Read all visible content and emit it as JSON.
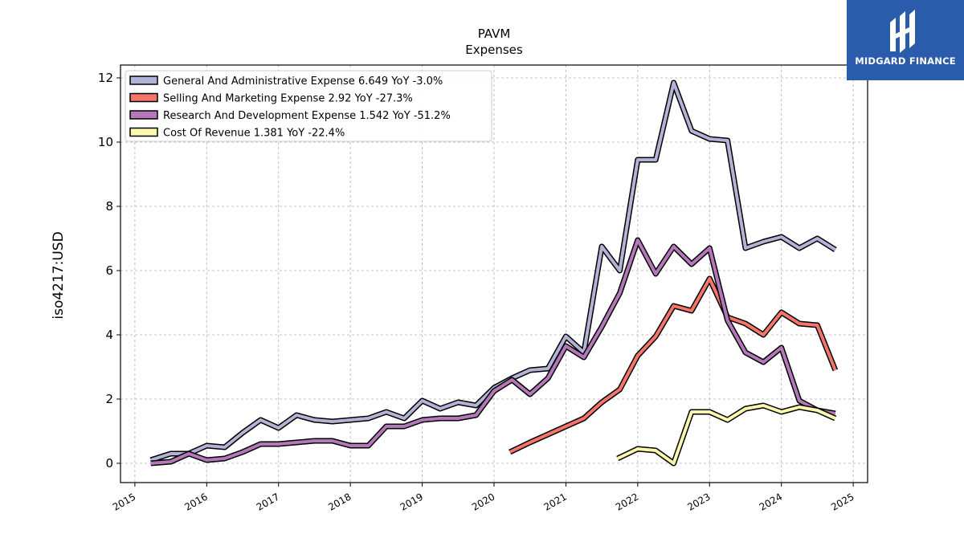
{
  "brand": {
    "name": "MIDGARD FINANCE",
    "color": "#2b5bab"
  },
  "chart_data": {
    "type": "line",
    "title": "PAVM",
    "subtitle": "Expenses",
    "xlabel": "",
    "ylabel": "iso4217:USD",
    "xlim": [
      2014.8,
      2025.2
    ],
    "ylim": [
      -0.6,
      12.4
    ],
    "x_ticks": [
      "2015",
      "2016",
      "2017",
      "2018",
      "2019",
      "2020",
      "2021",
      "2022",
      "2023",
      "2024",
      "2025"
    ],
    "y_ticks": [
      "0",
      "2",
      "4",
      "6",
      "8",
      "10",
      "12"
    ],
    "grid": true,
    "legend_position": "top-left",
    "series": [
      {
        "name": "General And Administrative Expense  6.649 YoY -3.0%",
        "color": "#b3b3d8",
        "x": [
          2015.22,
          2015.5,
          2015.75,
          2016.0,
          2016.25,
          2016.5,
          2016.75,
          2017.0,
          2017.25,
          2017.5,
          2017.75,
          2018.0,
          2018.25,
          2018.5,
          2018.75,
          2019.0,
          2019.25,
          2019.5,
          2019.75,
          2020.0,
          2020.25,
          2020.5,
          2020.75,
          2021.0,
          2021.25,
          2021.5,
          2021.75,
          2022.0,
          2022.25,
          2022.5,
          2022.75,
          2023.0,
          2023.25,
          2023.5,
          2023.75,
          2024.0,
          2024.25,
          2024.5,
          2024.75
        ],
        "y": [
          0.1,
          0.3,
          0.3,
          0.55,
          0.5,
          0.95,
          1.35,
          1.1,
          1.5,
          1.35,
          1.3,
          1.35,
          1.4,
          1.6,
          1.4,
          1.95,
          1.7,
          1.9,
          1.8,
          2.35,
          2.65,
          2.9,
          2.95,
          3.95,
          3.45,
          6.75,
          6.0,
          9.45,
          9.45,
          11.85,
          10.35,
          10.1,
          10.05,
          6.7,
          6.9,
          7.05,
          6.7,
          7.0,
          6.65
        ]
      },
      {
        "name": "Selling And Marketing Expense  2.92 YoY -27.3%",
        "color": "#f4766a",
        "x": [
          2020.22,
          2020.5,
          2020.75,
          2021.0,
          2021.25,
          2021.5,
          2021.75,
          2022.0,
          2022.25,
          2022.5,
          2022.75,
          2023.0,
          2023.25,
          2023.5,
          2023.75,
          2024.0,
          2024.25,
          2024.5,
          2024.75
        ],
        "y": [
          0.35,
          0.65,
          0.9,
          1.15,
          1.4,
          1.9,
          2.3,
          3.35,
          3.95,
          4.9,
          4.75,
          5.75,
          4.55,
          4.35,
          4.0,
          4.7,
          4.35,
          4.3,
          2.9
        ]
      },
      {
        "name": "Research And Development Expense  1.542 YoY -51.2%",
        "color": "#b477b9",
        "x": [
          2015.22,
          2015.5,
          2015.75,
          2016.0,
          2016.25,
          2016.5,
          2016.75,
          2017.0,
          2017.25,
          2017.5,
          2017.75,
          2018.0,
          2018.25,
          2018.5,
          2018.75,
          2019.0,
          2019.25,
          2019.5,
          2019.75,
          2020.0,
          2020.25,
          2020.5,
          2020.75,
          2021.0,
          2021.25,
          2021.5,
          2021.75,
          2022.0,
          2022.25,
          2022.5,
          2022.75,
          2023.0,
          2023.25,
          2023.5,
          2023.75,
          2024.0,
          2024.25,
          2024.5,
          2024.75
        ],
        "y": [
          0.0,
          0.05,
          0.3,
          0.1,
          0.15,
          0.35,
          0.6,
          0.6,
          0.65,
          0.7,
          0.7,
          0.55,
          0.55,
          1.15,
          1.15,
          1.35,
          1.4,
          1.4,
          1.5,
          2.25,
          2.6,
          2.15,
          2.65,
          3.65,
          3.3,
          4.25,
          5.3,
          6.95,
          5.9,
          6.75,
          6.2,
          6.7,
          4.45,
          3.45,
          3.15,
          3.6,
          1.95,
          1.65,
          1.55
        ]
      },
      {
        "name": "Cost Of Revenue  1.381 YoY -22.4%",
        "color": "#fbf7ac",
        "x": [
          2021.72,
          2022.0,
          2022.25,
          2022.5,
          2022.75,
          2023.0,
          2023.25,
          2023.5,
          2023.75,
          2024.0,
          2024.25,
          2024.5,
          2024.75
        ],
        "y": [
          0.15,
          0.45,
          0.4,
          0.0,
          1.6,
          1.6,
          1.35,
          1.7,
          1.8,
          1.6,
          1.75,
          1.65,
          1.4
        ]
      }
    ]
  }
}
